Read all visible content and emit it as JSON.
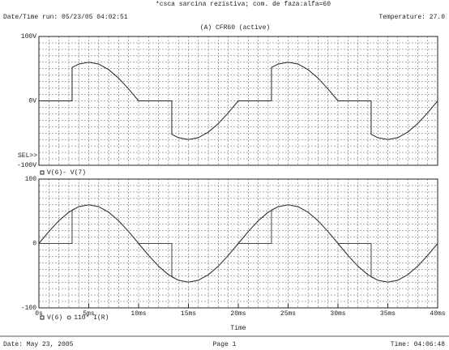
{
  "header": {
    "title": "*csca sarcina rezistiva; com. de faza:alfa=60",
    "run": "Date/Time run: 05/23/05 04:02:51",
    "temperature": "Temperature: 27.0",
    "subtitle": "(A) CFR60 (active)"
  },
  "footer": {
    "date": "Date: May 23, 2005",
    "page": "Page 1",
    "time": "Time: 04:06:48"
  },
  "chart_data": [
    {
      "type": "line",
      "sel_label": "SEL>>",
      "xlim": [
        0,
        40
      ],
      "ylim": [
        -100,
        100
      ],
      "yticks": [
        {
          "value": 100,
          "label": "100V"
        },
        {
          "value": 0,
          "label": "0V"
        },
        {
          "value": -100,
          "label": "-100V"
        }
      ],
      "grid": true,
      "grid_step": {
        "x": 1,
        "y": 10
      },
      "series": [
        {
          "name": "V(6)- V(7)",
          "color": "#222222",
          "x": [
            0,
            1,
            2,
            3,
            3.33,
            3.33,
            4,
            5,
            6,
            7,
            8,
            9,
            10,
            11,
            12,
            13,
            13.33,
            13.33,
            14,
            15,
            16,
            17,
            18,
            19,
            20,
            21,
            22,
            23,
            23.33,
            23.33,
            24,
            25,
            26,
            27,
            28,
            29,
            30,
            31,
            32,
            33,
            33.33,
            33.33,
            34,
            35,
            36,
            37,
            38,
            39,
            40
          ],
          "values": [
            0,
            0,
            0,
            0,
            0,
            52,
            57.1,
            60,
            57.1,
            48.5,
            35.3,
            18.5,
            0,
            0,
            0,
            0,
            0,
            -52,
            -57.1,
            -60,
            -57.1,
            -48.5,
            -35.3,
            -18.5,
            0,
            0,
            0,
            0,
            0,
            52,
            57.1,
            60,
            57.1,
            48.5,
            35.3,
            18.5,
            0,
            0,
            0,
            0,
            0,
            -52,
            -57.1,
            -60,
            -57.1,
            -48.5,
            -35.3,
            -18.5,
            0
          ]
        }
      ]
    },
    {
      "type": "line",
      "x_label": "Time",
      "xlim": [
        0,
        40
      ],
      "ylim": [
        -100,
        100
      ],
      "xticks": [
        {
          "value": 0,
          "label": "0s"
        },
        {
          "value": 5,
          "label": "5ms"
        },
        {
          "value": 10,
          "label": "10ms"
        },
        {
          "value": 15,
          "label": "15ms"
        },
        {
          "value": 20,
          "label": "20ms"
        },
        {
          "value": 25,
          "label": "25ms"
        },
        {
          "value": 30,
          "label": "30ms"
        },
        {
          "value": 35,
          "label": "35ms"
        },
        {
          "value": 40,
          "label": "40ms"
        }
      ],
      "yticks": [
        100,
        0,
        -100
      ],
      "grid": true,
      "grid_step": {
        "x": 1,
        "y": 10
      },
      "series": [
        {
          "name": "V(6)",
          "color": "#222222",
          "x": [
            0,
            1,
            2,
            3,
            4,
            5,
            6,
            7,
            8,
            9,
            10,
            11,
            12,
            13,
            14,
            15,
            16,
            17,
            18,
            19,
            20,
            21,
            22,
            23,
            24,
            25,
            26,
            27,
            28,
            29,
            30,
            31,
            32,
            33,
            34,
            35,
            36,
            37,
            38,
            39,
            40
          ],
          "values": [
            0,
            18.5,
            35.3,
            48.5,
            57.1,
            60,
            57.1,
            48.5,
            35.3,
            18.5,
            0,
            -18.5,
            -35.3,
            -48.5,
            -57.1,
            -60,
            -57.1,
            -48.5,
            -35.3,
            -18.5,
            0,
            18.5,
            35.3,
            48.5,
            57.1,
            60,
            57.1,
            48.5,
            35.3,
            18.5,
            0,
            -18.5,
            -35.3,
            -48.5,
            -57.1,
            -60,
            -57.1,
            -48.5,
            -35.3,
            -18.5,
            0
          ]
        },
        {
          "name": "110* I(R)",
          "color": "#444444",
          "x": [
            0,
            1,
            2,
            3,
            3.33,
            3.33,
            4,
            5,
            6,
            7,
            8,
            9,
            10,
            11,
            12,
            13,
            13.33,
            13.33,
            14,
            15,
            16,
            17,
            18,
            19,
            20,
            21,
            22,
            23,
            23.33,
            23.33,
            24,
            25,
            26,
            27,
            28,
            29,
            30,
            31,
            32,
            33,
            33.33,
            33.33,
            34,
            35,
            36,
            37,
            38,
            39,
            40
          ],
          "values": [
            0,
            0,
            0,
            0,
            0,
            52,
            57.1,
            60,
            57.1,
            48.5,
            35.3,
            18.5,
            0,
            0,
            0,
            0,
            0,
            -52,
            -57.1,
            -60,
            -57.1,
            -48.5,
            -35.3,
            -18.5,
            0,
            0,
            0,
            0,
            0,
            52,
            57.1,
            60,
            57.1,
            48.5,
            35.3,
            18.5,
            0,
            0,
            0,
            0,
            0,
            -52,
            -57.1,
            -60,
            -57.1,
            -48.5,
            -35.3,
            -18.5,
            0
          ]
        }
      ]
    }
  ]
}
